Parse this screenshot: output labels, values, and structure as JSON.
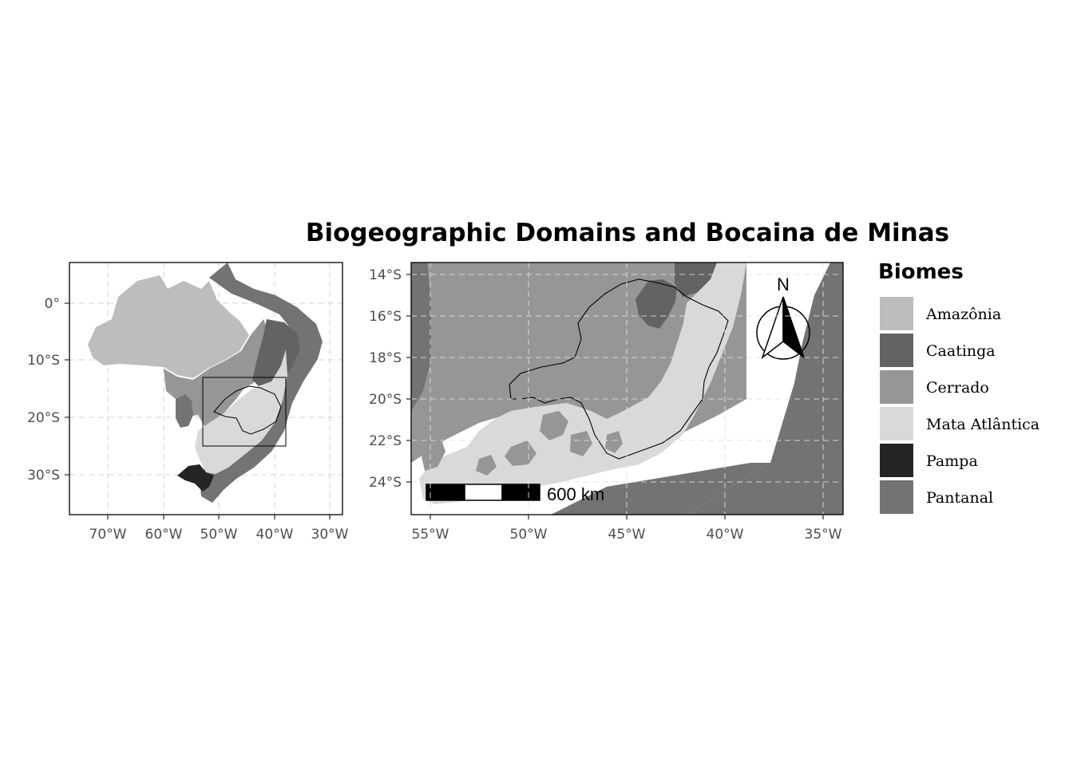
{
  "title": "Biogeographic Domains and Bocaina de Minas",
  "colors": {
    "Amazônia": "#bdbdbd",
    "Caatinga": "#636363",
    "Cerrado": "#969696",
    "Mata Atlântica": "#d9d9d9",
    "Pampa": "#252525",
    "Pantanal": "#737373"
  },
  "legend": {
    "title": "Biomes",
    "items": [
      "Amazônia",
      "Caatinga",
      "Cerrado",
      "Mata Atlântica",
      "Pampa",
      "Pantanal"
    ]
  },
  "overview_map": {
    "x_ticks": [
      "70°W",
      "60°W",
      "50°W",
      "40°W",
      "30°W"
    ],
    "y_ticks": [
      "0°",
      "10°S",
      "20°S",
      "30°S"
    ]
  },
  "detail_map": {
    "x_ticks": [
      "55°W",
      "50°W",
      "45°W",
      "40°W",
      "35°W"
    ],
    "y_ticks": [
      "14°S",
      "16°S",
      "18°S",
      "20°S",
      "22°S",
      "24°S"
    ],
    "scale_bar_label": "600 km",
    "north_label": "N"
  }
}
